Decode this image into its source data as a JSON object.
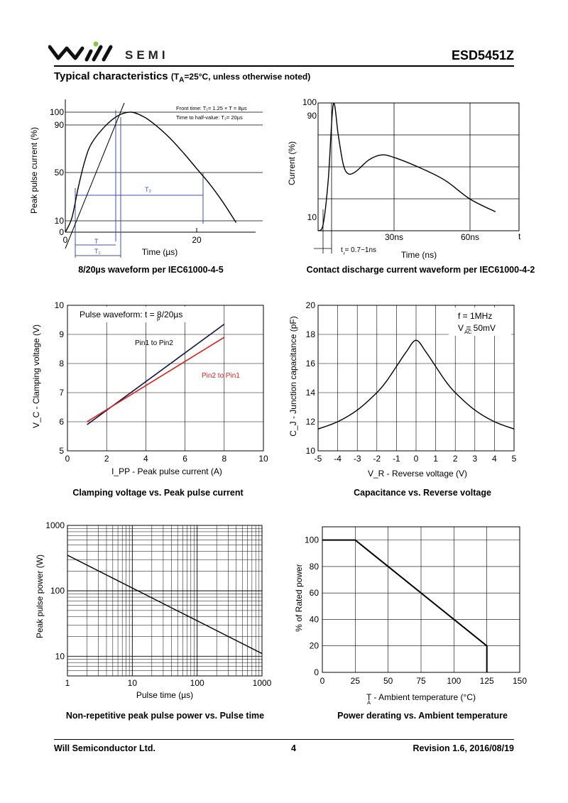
{
  "header": {
    "brand": "SEMI",
    "part_number": "ESD5451Z",
    "title_main": "Typical characteristics",
    "title_cond_pre": "(T",
    "title_cond_sub": "A",
    "title_cond_post": "=25°C, unless otherwise noted)"
  },
  "captions": [
    "8/20µs waveform per IEC61000-4-5",
    "Contact discharge current waveform per IEC61000-4-2",
    "Clamping voltage vs. Peak pulse current",
    "Capacitance vs. Reverse voltage",
    "Non-repetitive peak pulse power vs. Pulse time",
    "Power derating vs. Ambient temperature"
  ],
  "footer": {
    "company": "Will Semiconductor Ltd.",
    "page": "4",
    "revision": "Revision 1.6, 2016/08/19"
  },
  "colors": {
    "pin1": "#0d1440",
    "pin2": "#e31d1d",
    "grid": "#000000"
  },
  "chart_data": [
    {
      "type": "line",
      "ylabel": "Peak pulse current (%)",
      "xlabel": "Time (µs)",
      "yticks": [
        "100",
        "90",
        "50",
        "10",
        "0"
      ],
      "xticks": [
        "0",
        "20"
      ],
      "annotation1": "Front time: T₁= 1.25 × T = 8µs",
      "annotation2": "Time to half-value: T₂= 20µs",
      "labels": {
        "t": "T",
        "t1": "T₁",
        "t2": "T₂"
      },
      "xlim": [
        0,
        26
      ],
      "ylim": [
        0,
        100
      ],
      "series": [
        {
          "x": [
            0,
            1,
            2,
            3,
            4,
            6,
            8,
            10,
            12,
            14,
            16,
            18,
            20,
            22,
            24,
            26
          ],
          "y": [
            0,
            12,
            38,
            60,
            74,
            88,
            97,
            100,
            96,
            88,
            78,
            66,
            53,
            40,
            25,
            8
          ]
        }
      ]
    },
    {
      "type": "line",
      "ylabel": "Current (%)",
      "xlabel": "Time (ns)",
      "yticks": [
        "100",
        "90",
        "10"
      ],
      "xticks": [
        "30ns",
        "60ns"
      ],
      "axis_end": "t",
      "annotation": "t = 0.7~1ns",
      "annotation_sub": "r",
      "xlim": [
        0,
        80
      ],
      "ylim": [
        0,
        100
      ],
      "series": [
        {
          "x": [
            0,
            2,
            4,
            6,
            8,
            10,
            12,
            15,
            20,
            25,
            30,
            40,
            50,
            60,
            70
          ],
          "y": [
            0,
            5,
            40,
            100,
            75,
            52,
            45,
            47,
            56,
            60,
            58,
            50,
            40,
            25,
            15
          ]
        }
      ]
    },
    {
      "type": "line",
      "xlabel": "I_PP - Peak pulse current (A)",
      "ylabel": "V_C - Clamping voltage (V)",
      "xlim": [
        0,
        10
      ],
      "ylim": [
        5,
        10
      ],
      "xticks": [
        "0",
        "2",
        "4",
        "6",
        "8",
        "10"
      ],
      "yticks": [
        "5",
        "6",
        "7",
        "8",
        "9",
        "10"
      ],
      "legend": "Pulse waveform: t  = 8/20µs",
      "legend_sub": "p",
      "series": [
        {
          "name": "Pin1 to Pin2",
          "x": [
            1,
            8
          ],
          "y": [
            5.9,
            9.35
          ]
        },
        {
          "name": "Pin2 to Pin1",
          "x": [
            1,
            8
          ],
          "y": [
            6.0,
            8.9
          ]
        }
      ]
    },
    {
      "type": "line",
      "xlabel": "V_R - Reverse voltage (V)",
      "ylabel": "C_J - Junction capacitance (pF)",
      "xlim": [
        -5,
        5
      ],
      "ylim": [
        10,
        20
      ],
      "xticks": [
        "-5",
        "-4",
        "-3",
        "-2",
        "-1",
        "0",
        "1",
        "2",
        "3",
        "4",
        "5"
      ],
      "yticks": [
        "10",
        "12",
        "14",
        "16",
        "18",
        "20"
      ],
      "note1": "f = 1MHz",
      "note2": "V   = 50mV",
      "note2_sub": "AC",
      "series": [
        {
          "x": [
            -5,
            -4,
            -3,
            -2,
            -1.5,
            -1,
            -0.5,
            0,
            0.5,
            1,
            1.5,
            2,
            3,
            4,
            5
          ],
          "y": [
            11.5,
            12.0,
            12.8,
            14.0,
            14.8,
            15.8,
            16.8,
            17.6,
            16.8,
            15.8,
            14.8,
            14.0,
            12.8,
            12.0,
            11.5
          ]
        }
      ]
    },
    {
      "type": "line",
      "xlabel": "Pulse time (µs)",
      "ylabel": "Peak pulse power (W)",
      "xscale": "log",
      "yscale": "log",
      "xlim": [
        1,
        1000
      ],
      "ylim": [
        5,
        1000
      ],
      "xticks": [
        "1",
        "10",
        "100",
        "1000"
      ],
      "yticks": [
        "1000",
        "100",
        "10"
      ],
      "series": [
        {
          "x": [
            1,
            1000
          ],
          "y": [
            350,
            11
          ]
        }
      ]
    },
    {
      "type": "line",
      "xlabel": "T  - Ambient temperature (°C)",
      "xlabel_sub": "A",
      "ylabel": "% of Rated power",
      "xlim": [
        0,
        150
      ],
      "ylim": [
        0,
        110
      ],
      "xticks": [
        "0",
        "25",
        "50",
        "75",
        "100",
        "125",
        "150"
      ],
      "yticks": [
        "0",
        "20",
        "40",
        "60",
        "80",
        "100"
      ],
      "series": [
        {
          "x": [
            0,
            25,
            125,
            125
          ],
          "y": [
            100,
            100,
            20,
            0
          ]
        }
      ]
    }
  ]
}
